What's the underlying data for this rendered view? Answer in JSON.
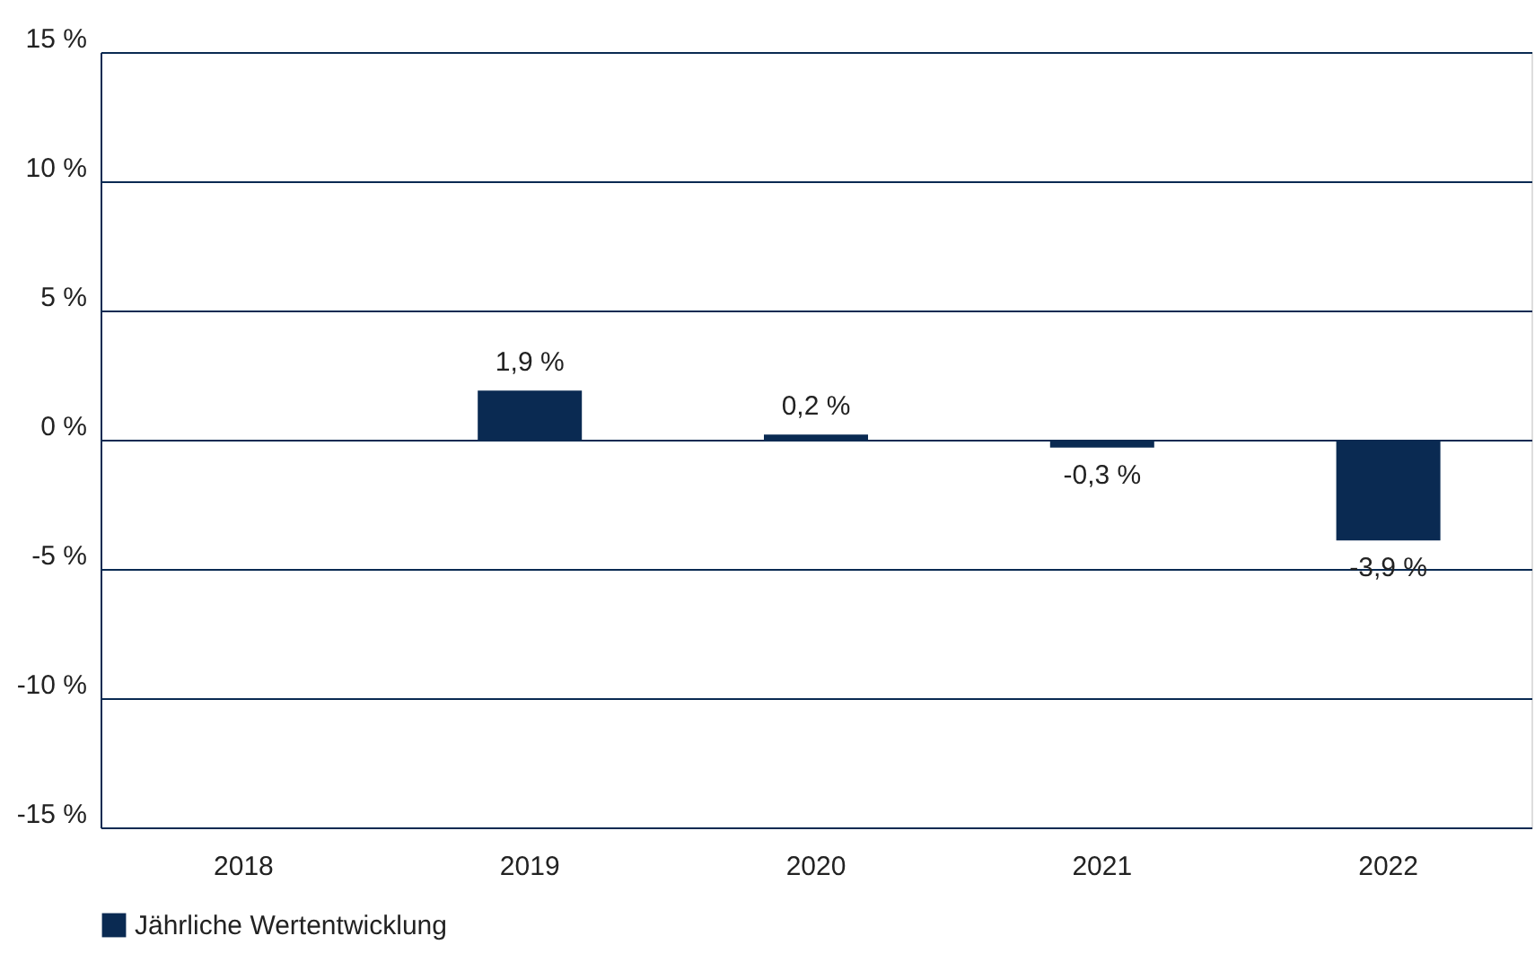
{
  "chart_data": {
    "type": "bar",
    "categories": [
      "2018",
      "2019",
      "2020",
      "2021",
      "2022"
    ],
    "series": [
      {
        "name": "Jährliche Wertentwicklung",
        "color": "#0a2a52",
        "values": [
          null,
          1.9,
          0.2,
          -0.3,
          -3.9
        ],
        "value_labels": [
          null,
          "1,9 %",
          "0,2 %",
          "-0,3 %",
          "-3,9 %"
        ]
      }
    ],
    "ylim": [
      -15,
      15
    ],
    "yticks": [
      {
        "value": -15,
        "label": "-15 %"
      },
      {
        "value": -10,
        "label": "-10 %"
      },
      {
        "value": -5,
        "label": "-5 %"
      },
      {
        "value": 0,
        "label": "0 %"
      },
      {
        "value": 5,
        "label": "5 %"
      },
      {
        "value": 10,
        "label": "10 %"
      },
      {
        "value": 15,
        "label": "15 %"
      }
    ],
    "grid": "y",
    "legend": "bottom"
  }
}
